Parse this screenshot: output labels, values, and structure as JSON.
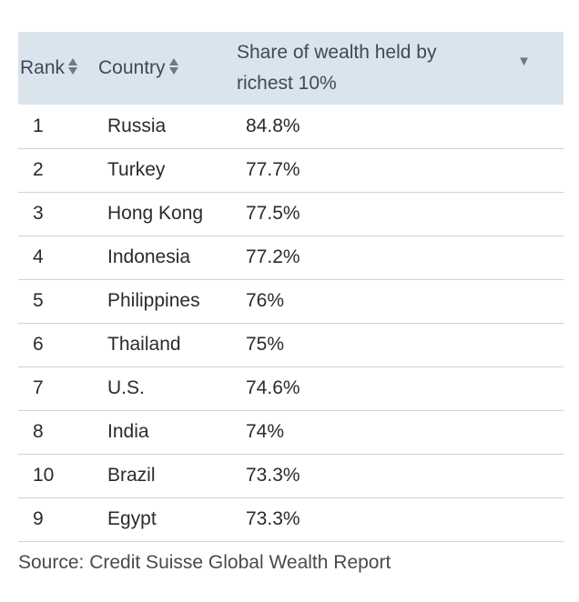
{
  "table": {
    "headers": {
      "rank": "Rank",
      "country": "Country",
      "share_line1": "Share of wealth held by",
      "share_line2": "richest 10%"
    },
    "rows": [
      {
        "rank": "1",
        "country": "Russia",
        "share": "84.8%"
      },
      {
        "rank": "2",
        "country": "Turkey",
        "share": "77.7%"
      },
      {
        "rank": "3",
        "country": "Hong Kong",
        "share": "77.5%"
      },
      {
        "rank": "4",
        "country": "Indonesia",
        "share": "77.2%"
      },
      {
        "rank": "5",
        "country": "Philippines",
        "share": "76%"
      },
      {
        "rank": "6",
        "country": "Thailand",
        "share": "75%"
      },
      {
        "rank": "7",
        "country": "U.S.",
        "share": "74.6%"
      },
      {
        "rank": "8",
        "country": "India",
        "share": "74%"
      },
      {
        "rank": "10",
        "country": "Brazil",
        "share": "73.3%"
      },
      {
        "rank": "9",
        "country": "Egypt",
        "share": "73.3%"
      }
    ]
  },
  "icons": {
    "rank_sort": "sort-updown-icon",
    "country_sort": "sort-updown-icon",
    "share_sort": "sort-descending-icon"
  },
  "colors": {
    "header_bg": "#d9e4ed",
    "header_text": "#3f4a56",
    "row_border": "#d2d2d2"
  },
  "source": "Source: Credit Suisse Global Wealth Report"
}
